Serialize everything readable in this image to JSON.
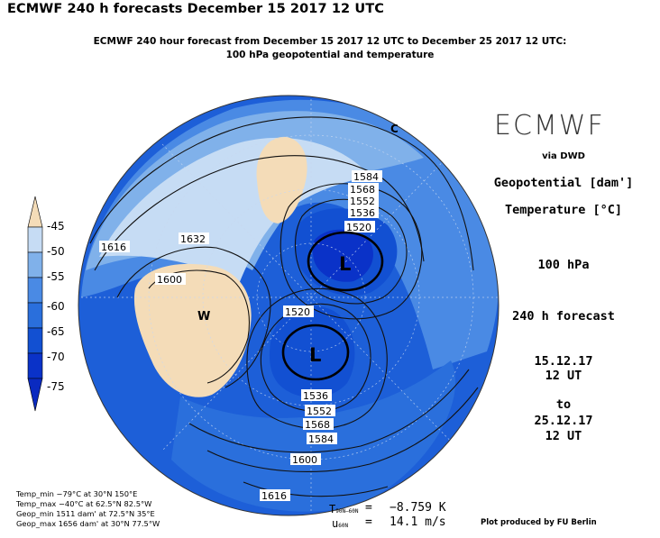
{
  "header": {
    "title": "ECMWF 240 h forecasts December 15 2017 12 UTC",
    "subtitle_line1": "ECMWF 240 hour forecast from December 15 2017 12 UTC to December 25 2017 12 UTC:",
    "subtitle_line2": "100 hPa geopotential and temperature"
  },
  "legend": {
    "labels": [
      "-45",
      "-50",
      "-55",
      "-60",
      "-65",
      "-70",
      "-75"
    ],
    "colors": [
      "#f4dcb8",
      "#c6dcf4",
      "#80b1ea",
      "#4a8ae4",
      "#2a6fdc",
      "#1250d2",
      "#0a32c8"
    ]
  },
  "map": {
    "contour_labels": [
      "1584",
      "1568",
      "1552",
      "1536",
      "1520",
      "1616",
      "1632",
      "1600",
      "1520",
      "1536",
      "1552",
      "1568",
      "1584",
      "1600",
      "1616"
    ],
    "pressure_markers": [
      "L",
      "L",
      "W"
    ],
    "compass_marker": "C",
    "colors": {
      "warm": "#f4dcb8",
      "pale_blue": "#c6dcf4",
      "light_blue": "#80b1ea",
      "mid_blue": "#4a8ae4",
      "blue": "#2a6fdc",
      "deep_blue": "#1250d2",
      "darkest_blue": "#0a32c8"
    }
  },
  "info_panel": {
    "brand": "ECMWF",
    "via": "via DWD",
    "geopotential": "Geopotential [dam']",
    "temperature": "Temperature [°C]",
    "level": "100 hPa",
    "forecast": "240 h forecast",
    "valid_from_date": "15.12.17",
    "valid_from_time": "12 UT",
    "to": "to",
    "valid_to_date": "25.12.17",
    "valid_to_time": "12 UT"
  },
  "stats": {
    "temp_min": "Temp_min −79°C at 30°N 150°E",
    "temp_max": "Temp_max −40°C at 62.5°N 82.5°W",
    "geop_min": "Geop_min 1511 dam' at 72.5°N 35°E",
    "geop_max": "Geop_max 1656 dam' at 30°N 77.5°W"
  },
  "diagnostics": {
    "t_label": "T",
    "t_subscript": "90N–60N",
    "t_eq": "=",
    "t_value": "−8.759 K",
    "u_label": "u",
    "u_subscript": "60N",
    "u_eq": "=",
    "u_value": "14.1 m/s"
  },
  "credit": "Plot produced by FU Berlin"
}
